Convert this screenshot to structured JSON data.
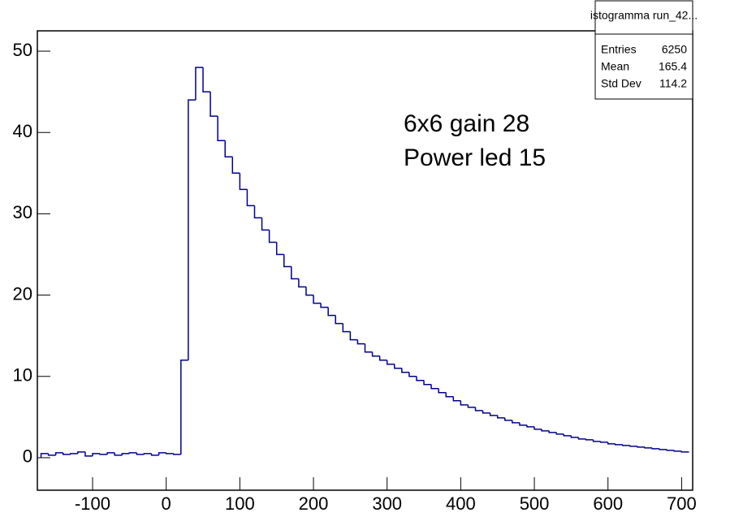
{
  "chart_data": {
    "type": "histogram",
    "annotations": [
      "6x6 gain 28",
      "Power led 15"
    ],
    "stats": {
      "title": "istogramma run_42...",
      "rows": [
        [
          "Entries",
          "6250"
        ],
        [
          "Mean",
          "165.4"
        ],
        [
          "Std Dev",
          "114.2"
        ]
      ]
    },
    "color": "#00008b",
    "bins": [
      -170,
      -160,
      -150,
      -140,
      -130,
      -120,
      -110,
      -100,
      -90,
      -80,
      -70,
      -60,
      -50,
      -40,
      -30,
      -20,
      -10,
      0,
      10,
      20,
      30,
      40,
      50,
      60,
      70,
      80,
      90,
      100,
      110,
      120,
      130,
      140,
      150,
      160,
      170,
      180,
      190,
      200,
      210,
      220,
      230,
      240,
      250,
      260,
      270,
      280,
      290,
      300,
      310,
      320,
      330,
      340,
      350,
      360,
      370,
      380,
      390,
      400,
      410,
      420,
      430,
      440,
      450,
      460,
      470,
      480,
      490,
      500,
      510,
      520,
      530,
      540,
      550,
      560,
      570,
      580,
      590,
      600,
      610,
      620,
      630,
      640,
      650,
      660,
      670,
      680,
      690,
      700,
      710
    ],
    "values": [
      0.5,
      0.3,
      0.6,
      0.4,
      0.5,
      0.7,
      0.2,
      0.5,
      0.4,
      0.6,
      0.3,
      0.5,
      0.6,
      0.4,
      0.5,
      0.3,
      0.6,
      0.5,
      0.4,
      12,
      44,
      48,
      45,
      42,
      39,
      37,
      35,
      33,
      31,
      29.5,
      28,
      26.5,
      25,
      23.5,
      22,
      21,
      20,
      19,
      18.5,
      17.5,
      16.5,
      15.5,
      14.5,
      14,
      13,
      12.5,
      12,
      11.5,
      11,
      10.5,
      10,
      9.5,
      9,
      8.5,
      8,
      7.5,
      7,
      6.5,
      6.2,
      5.8,
      5.5,
      5.2,
      4.9,
      4.6,
      4.3,
      4,
      3.8,
      3.5,
      3.3,
      3.1,
      2.9,
      2.7,
      2.5,
      2.3,
      2.2,
      2,
      1.9,
      1.7,
      1.6,
      1.5,
      1.4,
      1.3,
      1.2,
      1.1,
      1,
      0.9,
      0.8,
      0.7
    ],
    "xlim": [
      -175,
      715
    ],
    "xticks": [
      -100,
      0,
      100,
      200,
      300,
      400,
      500,
      600,
      700
    ],
    "ylim": [
      -4,
      52.5
    ],
    "yticks": [
      0,
      10,
      20,
      30,
      40,
      50
    ]
  }
}
